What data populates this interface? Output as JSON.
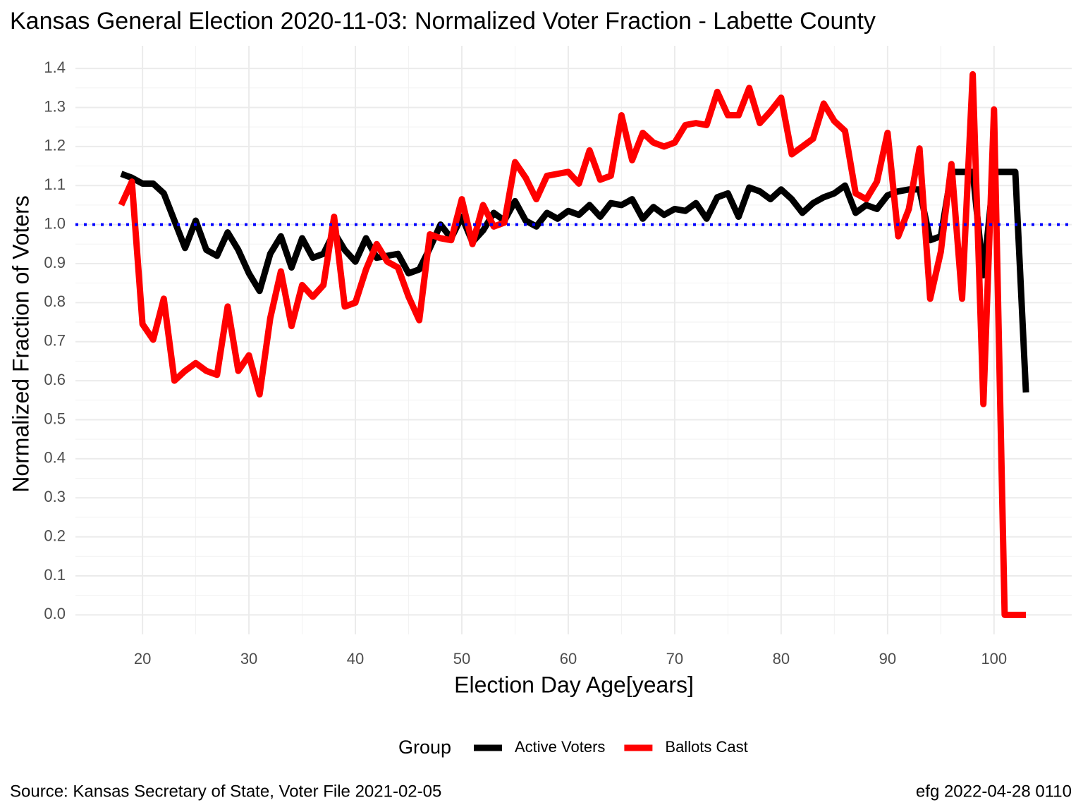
{
  "chart_data": {
    "type": "line",
    "title": "Kansas General Election 2020-11-03:  Normalized Voter Fraction - Labette County",
    "x_label": "Election Day Age[years]",
    "y_label": "Normalized Fraction of Voters",
    "legend_title": "Group",
    "source": "Source:  Kansas Secretary of State, Voter File  2021-02-05",
    "credit": "efg 2022-04-28 0110",
    "x": [
      18,
      19,
      20,
      21,
      22,
      23,
      24,
      25,
      26,
      27,
      28,
      29,
      30,
      31,
      32,
      33,
      34,
      35,
      36,
      37,
      38,
      39,
      40,
      41,
      42,
      43,
      44,
      45,
      46,
      47,
      48,
      49,
      50,
      51,
      52,
      53,
      54,
      55,
      56,
      57,
      58,
      59,
      60,
      61,
      62,
      63,
      64,
      65,
      66,
      67,
      68,
      69,
      70,
      71,
      72,
      73,
      74,
      75,
      76,
      77,
      78,
      79,
      80,
      81,
      82,
      83,
      84,
      85,
      86,
      87,
      88,
      89,
      90,
      91,
      92,
      93,
      94,
      95,
      96,
      97,
      98,
      99,
      100,
      101,
      102,
      103
    ],
    "series": [
      {
        "name": "Active Voters",
        "color": "#000000",
        "values": [
          1.13,
          1.12,
          1.105,
          1.105,
          1.08,
          1.01,
          0.94,
          1.01,
          0.935,
          0.92,
          0.98,
          0.935,
          0.875,
          0.83,
          0.925,
          0.97,
          0.89,
          0.965,
          0.915,
          0.925,
          0.98,
          0.935,
          0.905,
          0.965,
          0.915,
          0.92,
          0.925,
          0.875,
          0.885,
          0.94,
          1.0,
          0.965,
          1.02,
          0.955,
          0.985,
          1.03,
          1.01,
          1.06,
          1.01,
          0.995,
          1.03,
          1.015,
          1.035,
          1.025,
          1.05,
          1.02,
          1.055,
          1.05,
          1.065,
          1.015,
          1.045,
          1.025,
          1.04,
          1.035,
          1.055,
          1.015,
          1.07,
          1.08,
          1.02,
          1.095,
          1.085,
          1.065,
          1.09,
          1.065,
          1.03,
          1.055,
          1.07,
          1.08,
          1.1,
          1.03,
          1.05,
          1.04,
          1.075,
          1.085,
          1.09,
          1.09,
          0.96,
          0.97,
          1.135,
          1.135,
          1.135,
          0.87,
          1.135,
          1.135,
          1.135,
          0.57
        ]
      },
      {
        "name": "Ballots Cast",
        "color": "#ff0000",
        "values": [
          1.05,
          1.11,
          0.745,
          0.705,
          0.81,
          0.6,
          0.625,
          0.645,
          0.625,
          0.615,
          0.79,
          0.625,
          0.665,
          0.565,
          0.76,
          0.88,
          0.74,
          0.845,
          0.815,
          0.845,
          1.02,
          0.79,
          0.8,
          0.885,
          0.95,
          0.905,
          0.89,
          0.815,
          0.755,
          0.975,
          0.965,
          0.96,
          1.065,
          0.95,
          1.05,
          0.995,
          1.005,
          1.16,
          1.12,
          1.065,
          1.125,
          1.13,
          1.135,
          1.105,
          1.19,
          1.115,
          1.125,
          1.28,
          1.165,
          1.235,
          1.21,
          1.2,
          1.21,
          1.255,
          1.26,
          1.255,
          1.34,
          1.28,
          1.28,
          1.35,
          1.26,
          1.29,
          1.325,
          1.18,
          1.2,
          1.22,
          1.31,
          1.265,
          1.24,
          1.08,
          1.065,
          1.11,
          1.235,
          0.97,
          1.04,
          1.195,
          0.81,
          0.93,
          1.155,
          0.81,
          1.385,
          0.54,
          1.295,
          0.0,
          0.0,
          0.0
        ]
      }
    ],
    "reference_line": {
      "value": 1,
      "color": "#0000ff"
    },
    "xlim": [
      13.7,
      107.3
    ],
    "ylim": [
      -0.05,
      1.458
    ],
    "xticks": [
      20,
      30,
      40,
      50,
      60,
      70,
      80,
      90,
      100
    ],
    "yticks": [
      {
        "value": 0,
        "label": "0.0"
      },
      0.1,
      0.2,
      0.3,
      0.4,
      0.5,
      0.6,
      0.7,
      0.8,
      0.9,
      {
        "value": 1,
        "label": "1.0"
      },
      1.1,
      1.2,
      1.3,
      1.4
    ],
    "grid": true
  }
}
